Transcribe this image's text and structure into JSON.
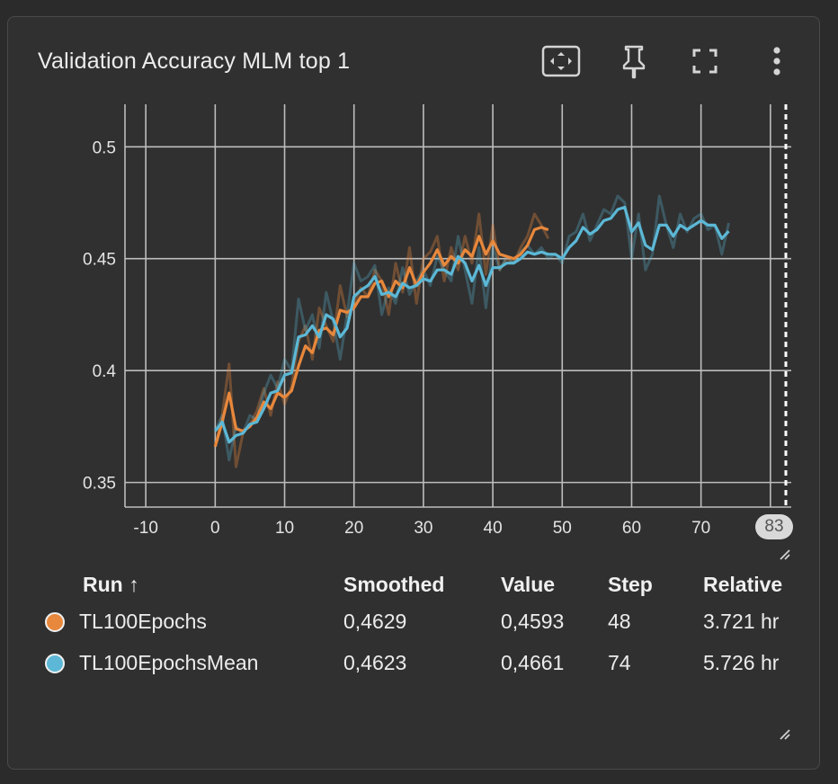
{
  "card": {
    "title": "Validation Accuracy MLM top 1"
  },
  "toolbar": {
    "fit_icon": "fit-domain-icon",
    "pin_icon": "pin-icon",
    "fullscreen_icon": "fullscreen-icon",
    "more_icon": "more-vert-icon"
  },
  "step_marker": {
    "label": "83"
  },
  "table": {
    "headers": [
      "Run ↑",
      "Smoothed",
      "Value",
      "Step",
      "Relative"
    ],
    "rows": [
      {
        "color": "#e8883c",
        "run": "TL100Epochs",
        "smoothed": "0,4629",
        "value": "0,4593",
        "step": "48",
        "relative": "3.721 hr"
      },
      {
        "color": "#5cb8d6",
        "run": "TL100EpochsMean",
        "smoothed": "0,4623",
        "value": "0,4661",
        "step": "74",
        "relative": "5.726 hr"
      }
    ]
  },
  "chart_data": {
    "type": "line",
    "title": "Validation Accuracy MLM top 1",
    "xlabel": "",
    "ylabel": "",
    "xlim": [
      -13,
      83
    ],
    "ylim": [
      0.339,
      0.519
    ],
    "x_ticks": [
      "-10",
      "0",
      "10",
      "20",
      "30",
      "40",
      "50",
      "60",
      "70",
      "80"
    ],
    "y_ticks": [
      "0.35",
      "0.4",
      "0.45",
      "0.5"
    ],
    "grid": true,
    "step_marker": 83,
    "series": [
      {
        "name": "TL100Epochs",
        "color": "#e8883c",
        "raw": [
          0.366,
          0.38,
          0.403,
          0.357,
          0.372,
          0.376,
          0.382,
          0.392,
          0.38,
          0.395,
          0.385,
          0.393,
          0.413,
          0.42,
          0.405,
          0.428,
          0.42,
          0.413,
          0.438,
          0.424,
          0.43,
          0.437,
          0.433,
          0.445,
          0.44,
          0.425,
          0.448,
          0.435,
          0.455,
          0.43,
          0.45,
          0.453,
          0.46,
          0.44,
          0.455,
          0.445,
          0.46,
          0.448,
          0.47,
          0.443,
          0.465,
          0.445,
          0.45,
          0.448,
          0.455,
          0.46,
          0.47,
          0.465,
          0.459
        ],
        "smoothed": [
          0.366,
          0.377,
          0.39,
          0.374,
          0.373,
          0.375,
          0.379,
          0.386,
          0.383,
          0.39,
          0.388,
          0.391,
          0.402,
          0.411,
          0.408,
          0.418,
          0.419,
          0.416,
          0.427,
          0.426,
          0.428,
          0.433,
          0.433,
          0.439,
          0.44,
          0.433,
          0.44,
          0.437,
          0.446,
          0.438,
          0.444,
          0.448,
          0.454,
          0.447,
          0.451,
          0.448,
          0.454,
          0.451,
          0.46,
          0.452,
          0.458,
          0.452,
          0.451,
          0.45,
          0.452,
          0.456,
          0.463,
          0.464,
          0.4629
        ]
      },
      {
        "name": "TL100EpochsMean",
        "color": "#5cb8d6",
        "raw": [
          0.373,
          0.38,
          0.36,
          0.375,
          0.372,
          0.38,
          0.378,
          0.39,
          0.398,
          0.392,
          0.405,
          0.4,
          0.432,
          0.418,
          0.425,
          0.41,
          0.435,
          0.422,
          0.405,
          0.425,
          0.448,
          0.44,
          0.442,
          0.447,
          0.425,
          0.437,
          0.43,
          0.446,
          0.434,
          0.44,
          0.445,
          0.438,
          0.451,
          0.445,
          0.44,
          0.46,
          0.445,
          0.43,
          0.455,
          0.428,
          0.455,
          0.445,
          0.451,
          0.448,
          0.453,
          0.456,
          0.452,
          0.455,
          0.45,
          0.452,
          0.448,
          0.46,
          0.462,
          0.47,
          0.458,
          0.465,
          0.472,
          0.47,
          0.478,
          0.475,
          0.45,
          0.47,
          0.445,
          0.452,
          0.478,
          0.465,
          0.455,
          0.47,
          0.462,
          0.468,
          0.47,
          0.463,
          0.465,
          0.452,
          0.466
        ],
        "smoothed": [
          0.373,
          0.377,
          0.368,
          0.371,
          0.372,
          0.376,
          0.377,
          0.383,
          0.39,
          0.391,
          0.398,
          0.399,
          0.415,
          0.416,
          0.42,
          0.415,
          0.425,
          0.423,
          0.415,
          0.419,
          0.433,
          0.436,
          0.438,
          0.442,
          0.434,
          0.435,
          0.433,
          0.439,
          0.437,
          0.438,
          0.441,
          0.44,
          0.445,
          0.445,
          0.443,
          0.451,
          0.448,
          0.44,
          0.447,
          0.438,
          0.446,
          0.446,
          0.448,
          0.448,
          0.45,
          0.453,
          0.452,
          0.453,
          0.452,
          0.452,
          0.45,
          0.455,
          0.458,
          0.464,
          0.461,
          0.463,
          0.467,
          0.468,
          0.472,
          0.473,
          0.462,
          0.466,
          0.456,
          0.454,
          0.465,
          0.465,
          0.46,
          0.465,
          0.463,
          0.465,
          0.467,
          0.465,
          0.465,
          0.459,
          0.4623
        ]
      }
    ]
  }
}
